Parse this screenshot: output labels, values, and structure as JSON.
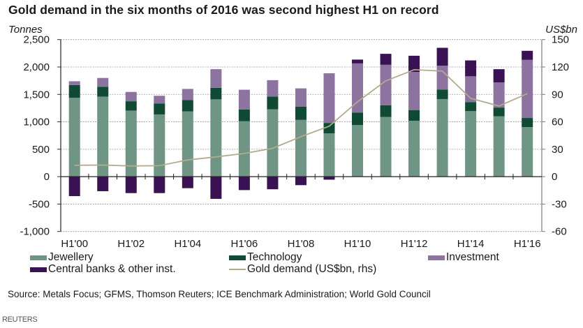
{
  "chart_data": {
    "type": "bar",
    "subtype": "stacked-bar-with-line",
    "title": "Gold demand in the six months of 2016 was second highest H1 on record",
    "ylabel": "Tonnes",
    "y2label": "US$bn",
    "ylim": [
      -1000,
      2500
    ],
    "y2lim": [
      -60,
      150
    ],
    "yticks": [
      "2,500",
      "2,000",
      "1,500",
      "1,000",
      "500",
      "0",
      "-500",
      "-1,000"
    ],
    "yticks_values": [
      2500,
      2000,
      1500,
      1000,
      500,
      0,
      -500,
      -1000
    ],
    "y2ticks": [
      "150",
      "120",
      "90",
      "60",
      "30",
      "0",
      "-30",
      "-60"
    ],
    "y2ticks_values": [
      150,
      120,
      90,
      60,
      30,
      0,
      -30,
      -60
    ],
    "grid": true,
    "categories": [
      "H1'00",
      "H1'01",
      "H1'02",
      "H1'03",
      "H1'04",
      "H1'05",
      "H1'06",
      "H1'07",
      "H1'08",
      "H1'09",
      "H1'10",
      "H1'11",
      "H1'12",
      "H1'13",
      "H1'14",
      "H1'15",
      "H1'16"
    ],
    "xtick_labels": [
      "H1'00",
      "H1'02",
      "H1'04",
      "H1'06",
      "H1'08",
      "H1'10",
      "H1'12",
      "H1'14",
      "H1'16"
    ],
    "series": [
      {
        "name": "Jewellery",
        "axis": "left",
        "kind": "bar",
        "color": "#6f9585",
        "values": [
          1440,
          1460,
          1205,
          1135,
          1190,
          1410,
          1010,
          1230,
          1035,
          790,
          940,
          1090,
          1020,
          1415,
          1195,
          1100,
          905
        ]
      },
      {
        "name": "Technology",
        "axis": "left",
        "kind": "bar",
        "color": "#0f4a34",
        "values": [
          230,
          180,
          170,
          200,
          205,
          210,
          215,
          230,
          240,
          190,
          230,
          210,
          195,
          175,
          165,
          160,
          165
        ]
      },
      {
        "name": "Investment",
        "axis": "left",
        "kind": "bar",
        "color": "#8c73a0",
        "values": [
          70,
          160,
          170,
          140,
          205,
          340,
          360,
          300,
          335,
          905,
          895,
          740,
          695,
          435,
          470,
          460,
          1060
        ]
      },
      {
        "name": "Central banks & other inst.",
        "axis": "left",
        "kind": "bar",
        "color": "#3a1254",
        "values": [
          -355,
          -265,
          -300,
          -300,
          -210,
          -405,
          -245,
          -230,
          -155,
          -55,
          70,
          200,
          295,
          325,
          290,
          240,
          165
        ]
      },
      {
        "name": "Gold demand (US$bn, rhs)",
        "axis": "right",
        "kind": "line",
        "color": "#b3ab8a",
        "values": [
          12.4,
          12.7,
          11.7,
          12.0,
          18.3,
          21.6,
          25.4,
          31.0,
          43.7,
          55.2,
          81.9,
          104.8,
          117.0,
          115.5,
          85.7,
          77.3,
          90.8
        ]
      }
    ],
    "legend_position": "bottom"
  },
  "legend": {
    "items": [
      {
        "label": "Jewellery",
        "color": "#6f9585",
        "kind": "bar"
      },
      {
        "label": "Technology",
        "color": "#0f4a34",
        "kind": "bar"
      },
      {
        "label": "Investment",
        "color": "#8c73a0",
        "kind": "bar"
      },
      {
        "label": "Central banks & other inst.",
        "color": "#3a1254",
        "kind": "bar"
      },
      {
        "label": "Gold demand (US$bn, rhs)",
        "color": "#b3ab8a",
        "kind": "line"
      }
    ]
  },
  "source": "Source: Metals Focus; GFMS, Thomson Reuters; ICE Benchmark Administration; World Gold Council",
  "credit": "REUTERS"
}
